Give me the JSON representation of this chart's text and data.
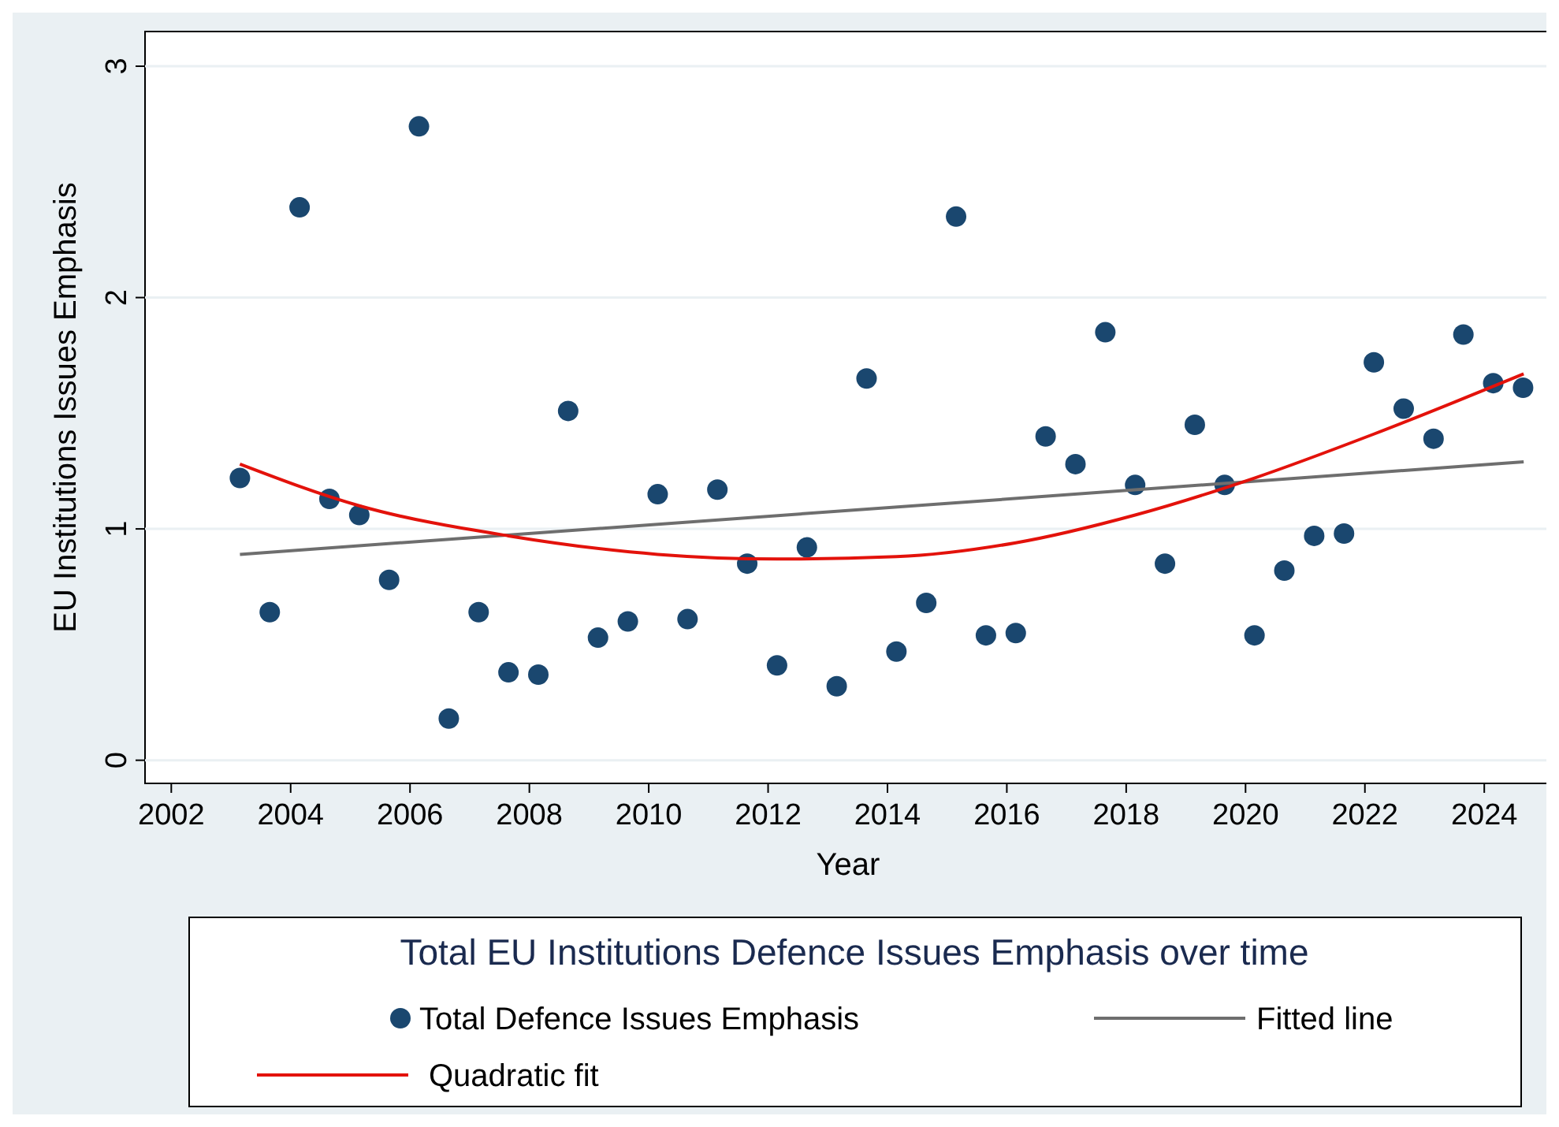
{
  "chart_data": {
    "type": "scatter",
    "xlabel": "Year",
    "ylabel": "EU Institutions Issues Emphasis",
    "legend_title": "Total EU Institutions Defence Issues Emphasis over time",
    "xlim": [
      2001.56,
      2025.12
    ],
    "xticks": [
      2002,
      2004,
      2006,
      2008,
      2010,
      2012,
      2014,
      2016,
      2018,
      2020,
      2022,
      2024
    ],
    "ylim": [
      -0.1,
      3.15
    ],
    "yticks": [
      0,
      1,
      2,
      3
    ],
    "grid": "y",
    "legend": "bottom",
    "series": [
      {
        "name": "Total Defence Issues Emphasis",
        "marker": "circle",
        "color": "#1a476f",
        "x": [
          2003.15,
          2003.65,
          2004.15,
          2004.65,
          2005.15,
          2005.65,
          2006.15,
          2006.65,
          2007.15,
          2007.65,
          2008.15,
          2008.65,
          2009.15,
          2009.65,
          2010.15,
          2010.65,
          2011.15,
          2011.65,
          2012.15,
          2012.65,
          2013.15,
          2013.65,
          2014.15,
          2014.65,
          2015.15,
          2015.65,
          2016.15,
          2016.65,
          2017.15,
          2017.65,
          2018.15,
          2018.65,
          2019.15,
          2019.65,
          2020.15,
          2020.65,
          2021.15,
          2021.65,
          2022.15,
          2022.65,
          2023.15,
          2023.65,
          2024.15,
          2024.65
        ],
        "values": [
          1.22,
          0.64,
          2.39,
          1.13,
          1.06,
          0.78,
          2.74,
          0.18,
          0.64,
          0.38,
          0.37,
          1.51,
          0.53,
          0.6,
          1.15,
          0.61,
          1.17,
          0.85,
          0.41,
          0.92,
          0.32,
          1.65,
          0.47,
          0.68,
          2.35,
          0.54,
          0.55,
          1.4,
          1.28,
          1.85,
          1.19,
          0.85,
          1.45,
          1.19,
          0.54,
          0.82,
          0.97,
          0.98,
          1.72,
          1.52,
          1.39,
          1.84,
          1.63,
          1.61
        ]
      },
      {
        "name": "Fitted line",
        "type": "line",
        "color": "#6e6e6e",
        "x": [
          2003.15,
          2024.66
        ],
        "values": [
          0.89,
          1.29
        ]
      },
      {
        "name": "Quadratic fit",
        "type": "line",
        "color": "#e3120b",
        "x": [
          2003.15,
          2005.15,
          2007.65,
          2010.15,
          2012.15,
          2014.15,
          2016.15,
          2018.15,
          2020.15,
          2022.15,
          2024.66
        ],
        "values": [
          1.28,
          1.1,
          0.97,
          0.89,
          0.87,
          0.88,
          0.94,
          1.06,
          1.22,
          1.41,
          1.67
        ]
      }
    ]
  }
}
